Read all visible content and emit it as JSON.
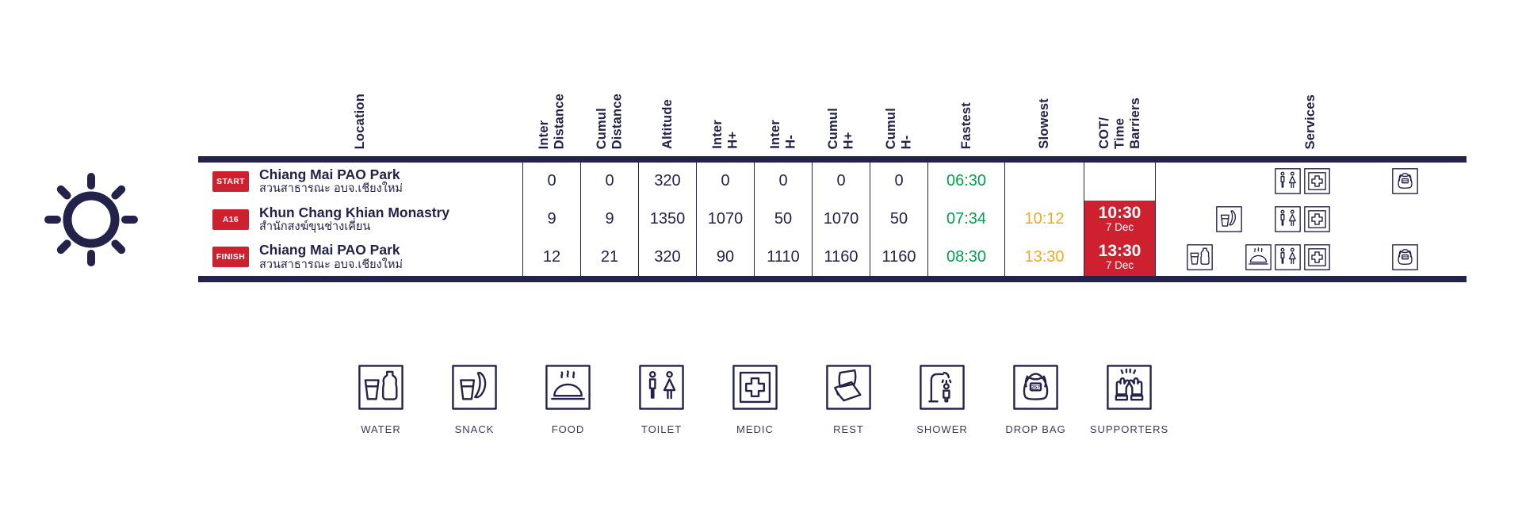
{
  "colors": {
    "navy": "#23224A",
    "red": "#CE2130",
    "green": "#00A14E",
    "orange": "#F5A81C"
  },
  "header": {
    "columns": [
      "Location",
      "Inter\nDistance",
      "Cumul\nDistance",
      "Altitude",
      "Inter\nH+",
      "Inter\nH-",
      "Cumul\nH+",
      "Cumul\nH-",
      "Fastest",
      "Slowest",
      "COT/\nTime\nBarriers",
      "Services"
    ]
  },
  "rows": [
    {
      "badge": "START",
      "name": "Chiang Mai PAO Park",
      "name_local": "สวนสาธารณะ อบจ.เชียงใหม่",
      "inter_distance": "0",
      "cumul_distance": "0",
      "altitude": "320",
      "inter_hplus": "0",
      "inter_hminus": "0",
      "cumul_hplus": "0",
      "cumul_hminus": "0",
      "fastest": "06:30",
      "slowest": "",
      "cot_time": "",
      "cot_date": "",
      "services": [
        "toilet",
        "medic",
        "dropbag"
      ]
    },
    {
      "badge": "A16",
      "name": "Khun Chang Khian Monastry",
      "name_local": "สำนักสงฆ์ขุนช่างเคี่ยน",
      "inter_distance": "9",
      "cumul_distance": "9",
      "altitude": "1350",
      "inter_hplus": "1070",
      "inter_hminus": "50",
      "cumul_hplus": "1070",
      "cumul_hminus": "50",
      "fastest": "07:34",
      "slowest": "10:12",
      "cot_time": "10:30",
      "cot_date": "7 Dec",
      "services": [
        "snack",
        "toilet",
        "medic"
      ]
    },
    {
      "badge": "FINISH",
      "name": "Chiang Mai PAO Park",
      "name_local": "สวนสาธารณะ อบจ.เชียงใหม่",
      "inter_distance": "12",
      "cumul_distance": "21",
      "altitude": "320",
      "inter_hplus": "90",
      "inter_hminus": "1110",
      "cumul_hplus": "1160",
      "cumul_hminus": "1160",
      "fastest": "08:30",
      "slowest": "13:30",
      "cot_time": "13:30",
      "cot_date": "7 Dec",
      "services": [
        "water",
        "food",
        "toilet",
        "medic",
        "dropbag"
      ]
    }
  ],
  "legend": {
    "items": [
      {
        "icon": "water-icon",
        "label": "WATER"
      },
      {
        "icon": "snack-icon",
        "label": "SNACK"
      },
      {
        "icon": "food-icon",
        "label": "FOOD"
      },
      {
        "icon": "toilet-icon",
        "label": "TOILET"
      },
      {
        "icon": "medic-icon",
        "label": "MEDIC"
      },
      {
        "icon": "rest-icon",
        "label": "REST"
      },
      {
        "icon": "shower-icon",
        "label": "SHOWER"
      },
      {
        "icon": "dropbag-icon",
        "label": "DROP BAG"
      },
      {
        "icon": "supporters-icon",
        "label": "SUPPORTERS"
      }
    ]
  },
  "dropbag_number": "257"
}
